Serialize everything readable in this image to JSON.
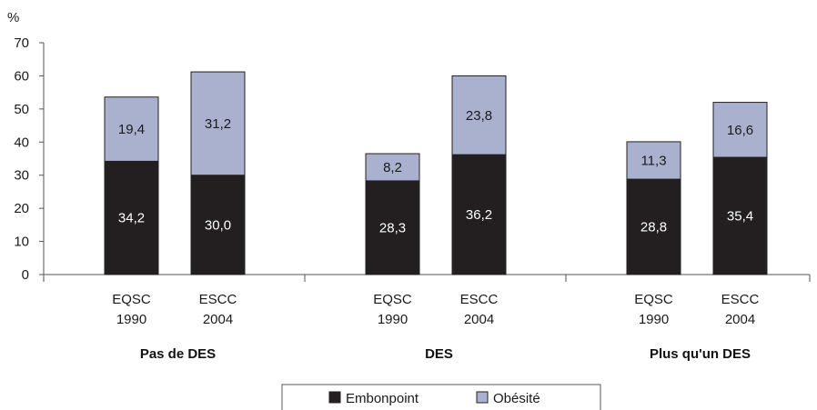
{
  "chart_data": {
    "type": "bar",
    "stacked": true,
    "ylabel": "%",
    "ylim": [
      0,
      70
    ],
    "yticks": [
      0,
      10,
      20,
      30,
      40,
      50,
      60,
      70
    ],
    "grid": false,
    "legend_position": "bottom",
    "groups": [
      {
        "label": "Pas de DES",
        "bars": [
          {
            "line1": "EQSC",
            "line2": "1990",
            "embonpoint": 34.2,
            "obesite": 19.4,
            "embonpoint_label": "34,2",
            "obesite_label": "19,4"
          },
          {
            "line1": "ESCC",
            "line2": "2004",
            "embonpoint": 30.0,
            "obesite": 31.2,
            "embonpoint_label": "30,0",
            "obesite_label": "31,2"
          }
        ]
      },
      {
        "label": "DES",
        "bars": [
          {
            "line1": "EQSC",
            "line2": "1990",
            "embonpoint": 28.3,
            "obesite": 8.2,
            "embonpoint_label": "28,3",
            "obesite_label": "8,2"
          },
          {
            "line1": "ESCC",
            "line2": "2004",
            "embonpoint": 36.2,
            "obesite": 23.8,
            "embonpoint_label": "36,2",
            "obesite_label": "23,8"
          }
        ]
      },
      {
        "label": "Plus qu'un DES",
        "bars": [
          {
            "line1": "EQSC",
            "line2": "1990",
            "embonpoint": 28.8,
            "obesite": 11.3,
            "embonpoint_label": "28,8",
            "obesite_label": "11,3"
          },
          {
            "line1": "ESCC",
            "line2": "2004",
            "embonpoint": 35.4,
            "obesite": 16.6,
            "embonpoint_label": "35,4",
            "obesite_label": "16,6"
          }
        ]
      }
    ],
    "series": [
      {
        "key": "embonpoint",
        "name": "Embonpoint",
        "color": "#231f20",
        "label_color": "#ffffff"
      },
      {
        "key": "obesite",
        "name": "Obésité",
        "color": "#aab1cf",
        "label_color": "#1a1a1a"
      }
    ]
  }
}
